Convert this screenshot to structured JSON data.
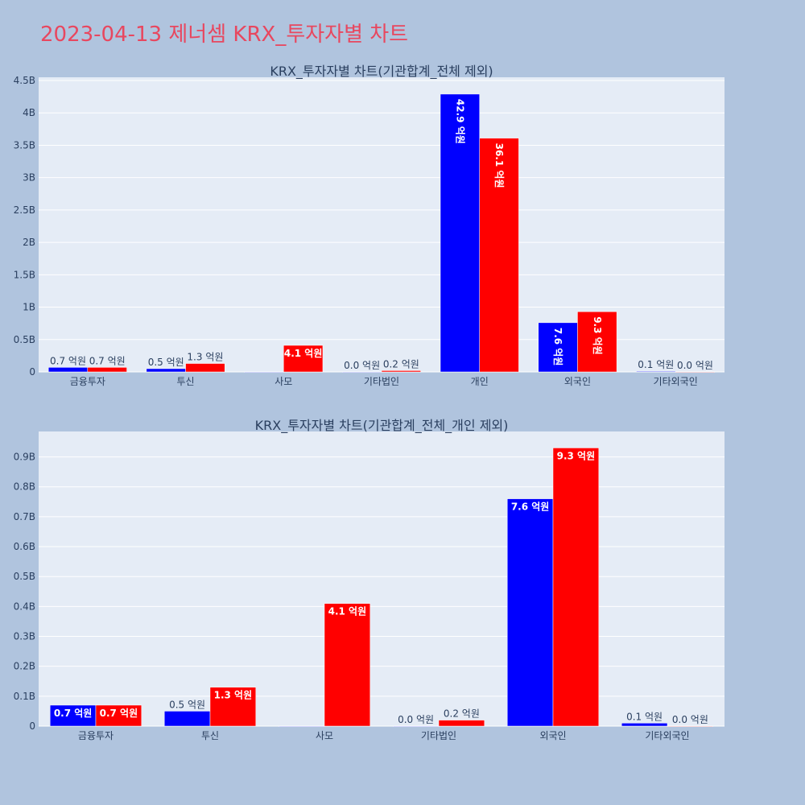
{
  "page": {
    "title": "2023-04-13 제너셈 KRX_투자자별 차트"
  },
  "colors": {
    "background": "#b0c4de",
    "plot_bg": "#e5ecf6",
    "title": "#e8475f",
    "series_a": "#0000ff",
    "series_b": "#ff0000"
  },
  "chart_data": [
    {
      "type": "bar",
      "title": "KRX_투자자별 차트(기관합계_전체 제외)",
      "categories": [
        "금융투자",
        "투신",
        "사모",
        "기타법인",
        "개인",
        "외국인",
        "기타외국인"
      ],
      "series": [
        {
          "color": "#0000ff",
          "values": [
            70000000,
            50000000,
            0,
            0,
            4290000000,
            760000000,
            10000000
          ],
          "labels": [
            "0.7 억원",
            "0.5 억원",
            "",
            "0.0 억원",
            "42.9 억원",
            "7.6 억원",
            "0.1 억원"
          ]
        },
        {
          "color": "#ff0000",
          "values": [
            70000000,
            130000000,
            410000000,
            20000000,
            3610000000,
            930000000,
            0
          ],
          "labels": [
            "0.7 억원",
            "1.3 억원",
            "4.1 억원",
            "0.2 억원",
            "36.1 억원",
            "9.3 억원",
            "0.0 억원"
          ]
        }
      ],
      "yticks": [
        0,
        500000000,
        1000000000,
        1500000000,
        2000000000,
        2500000000,
        3000000000,
        3500000000,
        4000000000,
        4500000000
      ],
      "ytick_labels": [
        "0",
        "0.5B",
        "1B",
        "1.5B",
        "2B",
        "2.5B",
        "3B",
        "3.5B",
        "4B",
        "4.5B"
      ],
      "ylim": [
        0,
        4550000000
      ],
      "grid": true
    },
    {
      "type": "bar",
      "title": "KRX_투자자별 차트(기관합계_전체_개인 제외)",
      "categories": [
        "금융투자",
        "투신",
        "사모",
        "기타법인",
        "외국인",
        "기타외국인"
      ],
      "series": [
        {
          "color": "#0000ff",
          "values": [
            70000000,
            50000000,
            0,
            0,
            760000000,
            10000000
          ],
          "labels": [
            "0.7 억원",
            "0.5 억원",
            "",
            "0.0 억원",
            "7.6 억원",
            "0.1 억원"
          ]
        },
        {
          "color": "#ff0000",
          "values": [
            70000000,
            130000000,
            410000000,
            20000000,
            930000000,
            0
          ],
          "labels": [
            "0.7 억원",
            "1.3 억원",
            "4.1 억원",
            "0.2 억원",
            "9.3 억원",
            "0.0 억원"
          ]
        }
      ],
      "yticks": [
        0,
        100000000,
        200000000,
        300000000,
        400000000,
        500000000,
        600000000,
        700000000,
        800000000,
        900000000
      ],
      "ytick_labels": [
        "0",
        "0.1B",
        "0.2B",
        "0.3B",
        "0.4B",
        "0.5B",
        "0.6B",
        "0.7B",
        "0.8B",
        "0.9B"
      ],
      "ylim": [
        0,
        985000000
      ],
      "grid": true
    }
  ]
}
